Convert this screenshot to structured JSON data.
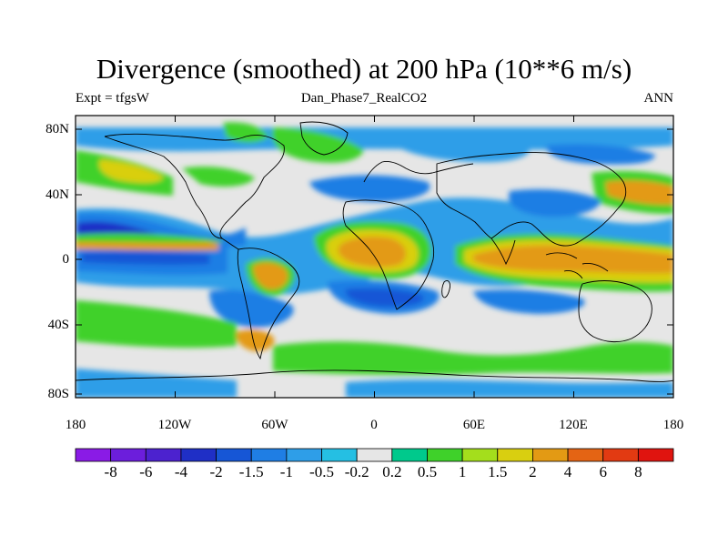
{
  "title": "Divergence (smoothed) at 200 hPa (10**6 m/s)",
  "subtitle_left": "Expt = tfgsW",
  "subtitle_center": "Dan_Phase7_RealCO2",
  "subtitle_right": "ANN",
  "lat_labels": [
    "80N",
    "40N",
    "0",
    "40S",
    "80S"
  ],
  "lon_labels": [
    "180",
    "120W",
    "60W",
    "0",
    "60E",
    "120E",
    "180"
  ],
  "colorbar": {
    "labels": [
      "-8",
      "-6",
      "-4",
      "-2",
      "-1.5",
      "-1",
      "-0.5",
      "-0.2",
      "0.2",
      "0.5",
      "1",
      "1.5",
      "2",
      "4",
      "6",
      "8"
    ],
    "colors": [
      "#8a1be6",
      "#6c1edc",
      "#4c22cf",
      "#1f2fc6",
      "#1656d6",
      "#1f7ee4",
      "#2e9ee8",
      "#25bfe3",
      "#e6e6e6",
      "#00c98c",
      "#3fd12a",
      "#a4de1c",
      "#d9cf10",
      "#e39a14",
      "#e46414",
      "#e23a12",
      "#e0140f"
    ]
  },
  "map_colors": {
    "ocean_background": "#e6e6e6",
    "coastline": "#000000"
  }
}
